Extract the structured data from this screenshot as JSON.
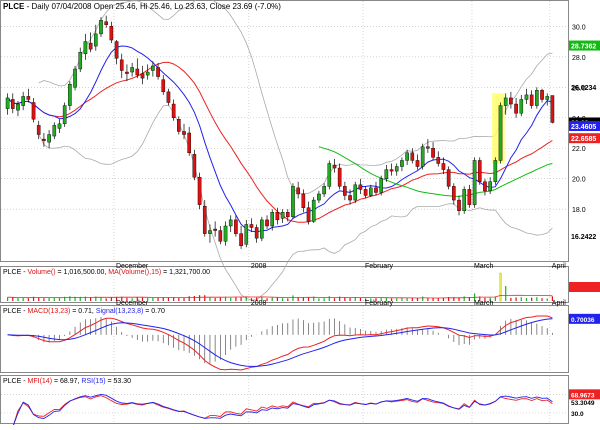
{
  "header": {
    "ticker": "PLCE",
    "text": " - Daily 07/04/2008 Open 25.46, Hi 25.46, Lo 23.63, Close 23.69 (-7.0%)"
  },
  "volume_header": {
    "ticker": "PLCE",
    "label1": "Volume()",
    "value1": " = 1,016,500.00, ",
    "label2": "MA(Volume(),15)",
    "value2": " = 1,321,700.00"
  },
  "macd_header": {
    "ticker": "PLCE",
    "label1": "MACD(13,23)",
    "value1": " = 0.71, ",
    "label2": "Signal(13,23,8)",
    "value2": " = 0.70"
  },
  "mfi_header": {
    "ticker": "PLCE",
    "label1": "MFI(14)",
    "value1": " = 68.97, ",
    "label2": "RSI(15)",
    "value2": " = 53.30"
  },
  "colors": {
    "up": "#22aa22",
    "down": "#dd1111",
    "ma_red": "#ee2222",
    "ma_blue": "#2222ee",
    "ma_green": "#11bb11",
    "band_gray": "#aaaaaa",
    "grid": "#bbbbbb",
    "highlight": "#ffff66"
  },
  "chart_data": {
    "type": "candlestick",
    "x_labels": [
      "December",
      "2008",
      "February",
      "March",
      "April"
    ],
    "price_axis_ticks": [
      "30.0",
      "28.0",
      "26.0",
      "24.0",
      "22.0",
      "20.0",
      "18.0"
    ],
    "price_badges": [
      {
        "label": "28.7362",
        "color": "#11bb11"
      },
      {
        "label": "26.0234",
        "color": null
      },
      {
        "label": "23.69",
        "color": "#000000"
      },
      {
        "label": "23.4605",
        "color": "#2222ee"
      },
      {
        "label": "22.6585",
        "color": "#ee2222"
      },
      {
        "label": "16.2422",
        "color": null
      }
    ],
    "candles": [
      {
        "o": 24.6,
        "h": 25.6,
        "l": 24.2,
        "c": 25.3
      },
      {
        "o": 25.2,
        "h": 25.6,
        "l": 24.3,
        "c": 24.6
      },
      {
        "o": 24.5,
        "h": 25.1,
        "l": 24.1,
        "c": 24.9
      },
      {
        "o": 24.8,
        "h": 25.7,
        "l": 24.5,
        "c": 25.4
      },
      {
        "o": 25.4,
        "h": 25.9,
        "l": 25.0,
        "c": 25.2
      },
      {
        "o": 25.0,
        "h": 25.3,
        "l": 23.7,
        "c": 23.9
      },
      {
        "o": 23.5,
        "h": 23.8,
        "l": 22.6,
        "c": 22.9
      },
      {
        "o": 22.6,
        "h": 23.0,
        "l": 22.1,
        "c": 22.5
      },
      {
        "o": 22.4,
        "h": 23.2,
        "l": 22.0,
        "c": 22.9
      },
      {
        "o": 22.8,
        "h": 23.7,
        "l": 22.6,
        "c": 23.5
      },
      {
        "o": 23.3,
        "h": 23.9,
        "l": 23.0,
        "c": 23.6
      },
      {
        "o": 23.6,
        "h": 25.0,
        "l": 23.4,
        "c": 24.8
      },
      {
        "o": 24.8,
        "h": 26.4,
        "l": 24.5,
        "c": 26.2
      },
      {
        "o": 26.0,
        "h": 27.4,
        "l": 25.8,
        "c": 27.2
      },
      {
        "o": 27.2,
        "h": 28.6,
        "l": 27.0,
        "c": 28.3
      },
      {
        "o": 28.2,
        "h": 29.5,
        "l": 27.8,
        "c": 29.0
      },
      {
        "o": 28.9,
        "h": 29.6,
        "l": 28.3,
        "c": 28.5
      },
      {
        "o": 28.7,
        "h": 30.1,
        "l": 28.4,
        "c": 29.5
      },
      {
        "o": 29.5,
        "h": 30.6,
        "l": 29.3,
        "c": 30.4
      },
      {
        "o": 30.3,
        "h": 30.7,
        "l": 29.9,
        "c": 30.1
      },
      {
        "o": 30.0,
        "h": 30.3,
        "l": 28.9,
        "c": 29.1
      },
      {
        "o": 29.0,
        "h": 29.1,
        "l": 27.5,
        "c": 27.9
      },
      {
        "o": 27.8,
        "h": 28.2,
        "l": 26.6,
        "c": 27.1
      },
      {
        "o": 27.0,
        "h": 27.5,
        "l": 26.4,
        "c": 26.9
      },
      {
        "o": 27.0,
        "h": 27.6,
        "l": 26.7,
        "c": 27.3
      },
      {
        "o": 27.2,
        "h": 27.9,
        "l": 26.6,
        "c": 26.8
      },
      {
        "o": 26.9,
        "h": 27.4,
        "l": 26.2,
        "c": 26.6
      },
      {
        "o": 26.8,
        "h": 27.5,
        "l": 26.5,
        "c": 27.0
      },
      {
        "o": 27.1,
        "h": 27.7,
        "l": 26.7,
        "c": 27.4
      },
      {
        "o": 27.3,
        "h": 27.6,
        "l": 26.5,
        "c": 26.7
      },
      {
        "o": 26.5,
        "h": 26.8,
        "l": 25.5,
        "c": 25.7
      },
      {
        "o": 25.7,
        "h": 25.9,
        "l": 24.8,
        "c": 25.0
      },
      {
        "o": 24.9,
        "h": 25.2,
        "l": 23.8,
        "c": 24.0
      },
      {
        "o": 23.9,
        "h": 24.1,
        "l": 22.9,
        "c": 23.1
      },
      {
        "o": 23.1,
        "h": 23.6,
        "l": 22.6,
        "c": 22.9
      },
      {
        "o": 23.0,
        "h": 23.4,
        "l": 21.5,
        "c": 21.7
      },
      {
        "o": 21.6,
        "h": 21.9,
        "l": 19.9,
        "c": 20.1
      },
      {
        "o": 20.1,
        "h": 20.4,
        "l": 18.0,
        "c": 18.3
      },
      {
        "o": 18.2,
        "h": 18.6,
        "l": 16.2,
        "c": 16.4
      },
      {
        "o": 16.4,
        "h": 17.0,
        "l": 15.8,
        "c": 16.6
      },
      {
        "o": 16.7,
        "h": 17.2,
        "l": 16.2,
        "c": 16.6
      },
      {
        "o": 16.6,
        "h": 16.9,
        "l": 15.7,
        "c": 15.9
      },
      {
        "o": 15.9,
        "h": 17.2,
        "l": 15.6,
        "c": 16.9
      },
      {
        "o": 16.9,
        "h": 17.6,
        "l": 16.5,
        "c": 17.3
      },
      {
        "o": 17.3,
        "h": 17.6,
        "l": 16.2,
        "c": 16.4
      },
      {
        "o": 16.4,
        "h": 16.9,
        "l": 15.4,
        "c": 15.6
      },
      {
        "o": 15.7,
        "h": 17.3,
        "l": 15.5,
        "c": 17.0
      },
      {
        "o": 17.0,
        "h": 17.4,
        "l": 16.5,
        "c": 16.8
      },
      {
        "o": 16.8,
        "h": 17.0,
        "l": 15.8,
        "c": 16.1
      },
      {
        "o": 16.1,
        "h": 17.5,
        "l": 15.9,
        "c": 17.3
      },
      {
        "o": 17.3,
        "h": 17.6,
        "l": 16.7,
        "c": 16.9
      },
      {
        "o": 16.9,
        "h": 18.0,
        "l": 16.6,
        "c": 17.8
      },
      {
        "o": 17.8,
        "h": 18.1,
        "l": 17.0,
        "c": 17.3
      },
      {
        "o": 17.4,
        "h": 18.0,
        "l": 17.1,
        "c": 17.8
      },
      {
        "o": 17.8,
        "h": 18.0,
        "l": 17.2,
        "c": 17.5
      },
      {
        "o": 17.5,
        "h": 19.7,
        "l": 17.4,
        "c": 19.5
      },
      {
        "o": 19.4,
        "h": 19.8,
        "l": 18.7,
        "c": 19.0
      },
      {
        "o": 19.0,
        "h": 19.3,
        "l": 17.8,
        "c": 18.1
      },
      {
        "o": 18.1,
        "h": 18.5,
        "l": 17.0,
        "c": 17.2
      },
      {
        "o": 17.2,
        "h": 18.8,
        "l": 17.1,
        "c": 18.6
      },
      {
        "o": 18.6,
        "h": 19.2,
        "l": 18.4,
        "c": 19.0
      },
      {
        "o": 19.0,
        "h": 19.7,
        "l": 18.8,
        "c": 19.5
      },
      {
        "o": 19.5,
        "h": 21.2,
        "l": 19.3,
        "c": 21.0
      },
      {
        "o": 20.9,
        "h": 21.3,
        "l": 20.4,
        "c": 20.7
      },
      {
        "o": 20.7,
        "h": 21.0,
        "l": 19.3,
        "c": 19.5
      },
      {
        "o": 19.5,
        "h": 19.8,
        "l": 18.6,
        "c": 18.9
      },
      {
        "o": 18.9,
        "h": 19.3,
        "l": 18.3,
        "c": 18.6
      },
      {
        "o": 18.6,
        "h": 19.8,
        "l": 18.4,
        "c": 19.6
      },
      {
        "o": 19.6,
        "h": 20.0,
        "l": 19.0,
        "c": 19.3
      },
      {
        "o": 19.3,
        "h": 19.5,
        "l": 18.7,
        "c": 18.9
      },
      {
        "o": 18.9,
        "h": 19.6,
        "l": 18.8,
        "c": 19.4
      },
      {
        "o": 19.4,
        "h": 19.8,
        "l": 18.9,
        "c": 19.1
      },
      {
        "o": 19.1,
        "h": 20.2,
        "l": 18.9,
        "c": 20.0
      },
      {
        "o": 20.0,
        "h": 20.9,
        "l": 19.8,
        "c": 20.6
      },
      {
        "o": 20.6,
        "h": 21.0,
        "l": 20.2,
        "c": 20.5
      },
      {
        "o": 20.5,
        "h": 21.0,
        "l": 20.2,
        "c": 20.8
      },
      {
        "o": 20.8,
        "h": 21.4,
        "l": 20.5,
        "c": 21.2
      },
      {
        "o": 21.2,
        "h": 21.9,
        "l": 20.9,
        "c": 21.7
      },
      {
        "o": 21.7,
        "h": 22.0,
        "l": 21.0,
        "c": 21.2
      },
      {
        "o": 21.2,
        "h": 21.6,
        "l": 20.6,
        "c": 20.8
      },
      {
        "o": 20.8,
        "h": 22.3,
        "l": 20.6,
        "c": 22.1
      },
      {
        "o": 22.1,
        "h": 22.6,
        "l": 21.7,
        "c": 22.0
      },
      {
        "o": 22.0,
        "h": 22.4,
        "l": 21.2,
        "c": 21.4
      },
      {
        "o": 21.4,
        "h": 21.8,
        "l": 20.8,
        "c": 21.0
      },
      {
        "o": 21.0,
        "h": 21.4,
        "l": 20.3,
        "c": 20.6
      },
      {
        "o": 20.6,
        "h": 20.8,
        "l": 19.3,
        "c": 19.5
      },
      {
        "o": 19.5,
        "h": 19.7,
        "l": 18.3,
        "c": 18.6
      },
      {
        "o": 18.6,
        "h": 18.9,
        "l": 17.6,
        "c": 17.9
      },
      {
        "o": 17.9,
        "h": 19.5,
        "l": 17.7,
        "c": 19.3
      },
      {
        "o": 19.3,
        "h": 19.6,
        "l": 18.1,
        "c": 18.3
      },
      {
        "o": 18.3,
        "h": 21.4,
        "l": 18.1,
        "c": 21.2
      },
      {
        "o": 21.2,
        "h": 21.4,
        "l": 19.6,
        "c": 19.8
      },
      {
        "o": 19.8,
        "h": 20.0,
        "l": 18.9,
        "c": 19.2
      },
      {
        "o": 19.2,
        "h": 20.1,
        "l": 19.0,
        "c": 19.8
      },
      {
        "o": 19.8,
        "h": 21.4,
        "l": 19.6,
        "c": 21.2
      },
      {
        "o": 21.2,
        "h": 25.0,
        "l": 21.0,
        "c": 24.8
      },
      {
        "o": 24.8,
        "h": 25.6,
        "l": 24.2,
        "c": 25.3
      },
      {
        "o": 25.3,
        "h": 25.7,
        "l": 24.6,
        "c": 24.9
      },
      {
        "o": 24.9,
        "h": 25.3,
        "l": 24.0,
        "c": 24.3
      },
      {
        "o": 24.3,
        "h": 25.5,
        "l": 24.1,
        "c": 25.2
      },
      {
        "o": 25.2,
        "h": 25.9,
        "l": 24.9,
        "c": 25.5
      },
      {
        "o": 25.5,
        "h": 25.8,
        "l": 24.6,
        "c": 24.8
      },
      {
        "o": 24.8,
        "h": 26.0,
        "l": 24.6,
        "c": 25.8
      },
      {
        "o": 25.8,
        "h": 25.9,
        "l": 25.0,
        "c": 25.2
      },
      {
        "o": 25.2,
        "h": 25.6,
        "l": 24.8,
        "c": 25.4
      },
      {
        "o": 25.46,
        "h": 25.46,
        "l": 23.63,
        "c": 23.69
      }
    ],
    "volume_note": "volume bars relative, highlighted spike on breakout day",
    "macd_axis_ticks": [
      "0.70036"
    ],
    "mfi_axis_ticks": [
      "68.9673",
      "53.3049",
      "30.0"
    ]
  }
}
